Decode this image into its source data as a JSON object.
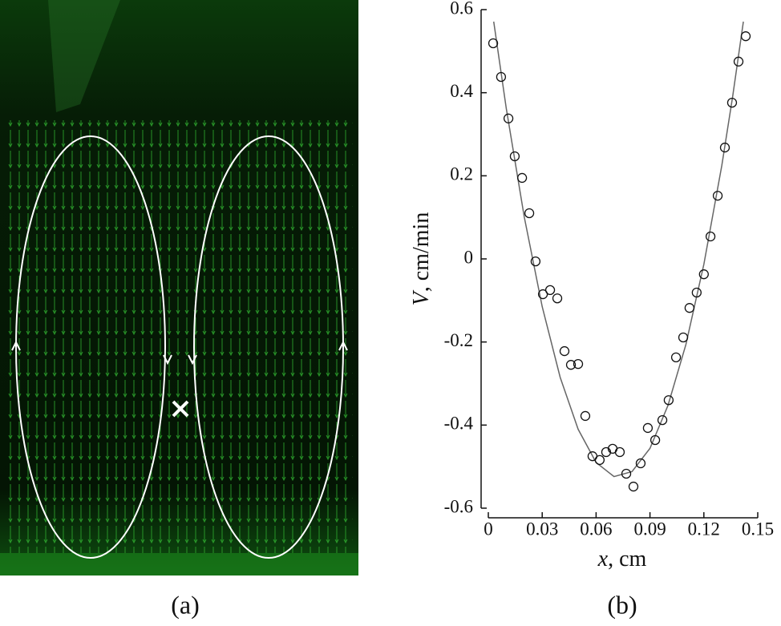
{
  "panel_labels": [
    "(a)",
    "(b)"
  ],
  "chart_data": {
    "type": "scatter",
    "xlabel": [
      "x",
      ", cm"
    ],
    "ylabel": [
      "V",
      ", cm/min"
    ],
    "xlim": [
      0,
      0.15
    ],
    "xticks": [
      0,
      0.03,
      0.06,
      0.09,
      0.12,
      0.15
    ],
    "ylim": [
      -0.6,
      0.6
    ],
    "yticks": [
      0.6,
      0.4,
      0.2,
      0,
      -0.2,
      -0.4,
      -0.6
    ],
    "points": {
      "color": "#111",
      "x": [
        0.0027,
        0.0071,
        0.0112,
        0.0147,
        0.0188,
        0.0228,
        0.0263,
        0.0304,
        0.0344,
        0.0384,
        0.0424,
        0.046,
        0.05,
        0.054,
        0.058,
        0.062,
        0.0656,
        0.0692,
        0.0732,
        0.0768,
        0.0808,
        0.0848,
        0.0888,
        0.0929,
        0.0969,
        0.1004,
        0.1045,
        0.1085,
        0.112,
        0.116,
        0.12,
        0.1237,
        0.1277,
        0.1317,
        0.1357,
        0.1393,
        0.1433
      ],
      "values": [
        0.519,
        0.438,
        0.338,
        0.247,
        0.195,
        0.11,
        -0.006,
        -0.085,
        -0.075,
        -0.095,
        -0.222,
        -0.255,
        -0.253,
        -0.378,
        -0.475,
        -0.484,
        -0.465,
        -0.457,
        -0.465,
        -0.517,
        -0.548,
        -0.492,
        -0.407,
        -0.436,
        -0.388,
        -0.34,
        -0.237,
        -0.189,
        -0.118,
        -0.081,
        -0.037,
        0.054,
        0.152,
        0.268,
        0.376,
        0.475,
        0.536
      ]
    },
    "fit": {
      "color": "#666",
      "x": [
        0.003,
        0.01,
        0.02,
        0.03,
        0.04,
        0.05,
        0.06,
        0.07,
        0.08,
        0.09,
        0.1,
        0.11,
        0.12,
        0.13,
        0.136,
        0.142
      ],
      "values": [
        0.571,
        0.362,
        0.101,
        -0.115,
        -0.285,
        -0.41,
        -0.49,
        -0.524,
        -0.512,
        -0.456,
        -0.353,
        -0.206,
        -0.013,
        0.225,
        0.39,
        0.571
      ]
    }
  }
}
